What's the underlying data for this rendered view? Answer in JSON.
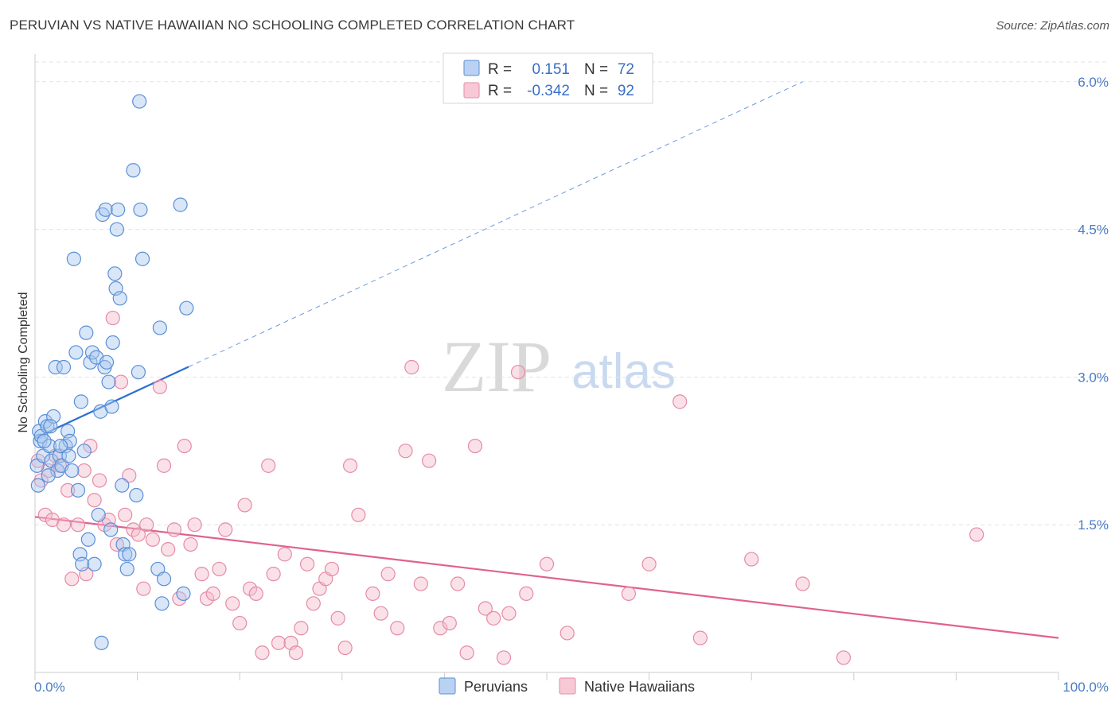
{
  "title": "PERUVIAN VS NATIVE HAWAIIAN NO SCHOOLING COMPLETED CORRELATION CHART",
  "source": "Source: ZipAtlas.com",
  "watermark": {
    "zip": "ZIP",
    "atlas": "atlas"
  },
  "colors": {
    "blue_fill": "#a9c7ef",
    "blue_stroke": "#5b8fd6",
    "blue_line": "#2a6fd0",
    "pink_fill": "#f5bccd",
    "pink_stroke": "#e58aa8",
    "pink_line": "#e0628e",
    "grid": "#e3e3e3",
    "axis_label": "#4a7cc4"
  },
  "legend": {
    "rows": [
      {
        "r_label": "R =",
        "r_value": "0.151",
        "n_label": "N =",
        "n_value": "72"
      },
      {
        "r_label": "R =",
        "r_value": "-0.342",
        "n_label": "N =",
        "n_value": "92"
      }
    ]
  },
  "bottom_legend": [
    "Peruvians",
    "Native Hawaiians"
  ],
  "chart_data": {
    "type": "scatter",
    "title": "PERUVIAN VS NATIVE HAWAIIAN NO SCHOOLING COMPLETED CORRELATION CHART",
    "xlabel": "",
    "ylabel": "No Schooling Completed",
    "xlim": [
      0,
      100
    ],
    "ylim": [
      0,
      6.2
    ],
    "x_tick_labels": [
      "0.0%",
      "100.0%"
    ],
    "y_ticks": [
      {
        "value": 1.5,
        "label": "1.5%"
      },
      {
        "value": 3.0,
        "label": "3.0%"
      },
      {
        "value": 4.5,
        "label": "4.5%"
      },
      {
        "value": 6.0,
        "label": "6.0%"
      }
    ],
    "series": [
      {
        "name": "Peruvians",
        "R": 0.151,
        "N": 72,
        "trend": {
          "x0": 0,
          "y0": 2.38,
          "x1": 75,
          "y1": 6.0,
          "solid_until": 15
        },
        "points": [
          [
            0.2,
            2.1
          ],
          [
            0.3,
            1.9
          ],
          [
            0.4,
            2.45
          ],
          [
            0.5,
            2.35
          ],
          [
            0.6,
            2.4
          ],
          [
            0.8,
            2.2
          ],
          [
            1.0,
            2.55
          ],
          [
            1.2,
            2.5
          ],
          [
            1.4,
            2.3
          ],
          [
            1.6,
            2.15
          ],
          [
            1.8,
            2.6
          ],
          [
            2.0,
            3.1
          ],
          [
            2.2,
            2.05
          ],
          [
            2.4,
            2.2
          ],
          [
            2.6,
            2.1
          ],
          [
            2.8,
            3.1
          ],
          [
            3.0,
            2.3
          ],
          [
            3.2,
            2.45
          ],
          [
            3.4,
            2.35
          ],
          [
            3.6,
            2.05
          ],
          [
            3.8,
            4.2
          ],
          [
            4.0,
            3.25
          ],
          [
            4.2,
            1.85
          ],
          [
            4.4,
            1.2
          ],
          [
            4.5,
            2.75
          ],
          [
            4.6,
            1.1
          ],
          [
            4.8,
            2.25
          ],
          [
            5.0,
            3.45
          ],
          [
            5.2,
            1.35
          ],
          [
            5.4,
            3.15
          ],
          [
            5.6,
            3.25
          ],
          [
            5.8,
            1.1
          ],
          [
            6.0,
            3.2
          ],
          [
            6.2,
            1.6
          ],
          [
            6.4,
            2.65
          ],
          [
            6.6,
            4.65
          ],
          [
            6.8,
            3.1
          ],
          [
            6.9,
            4.7
          ],
          [
            7.0,
            3.15
          ],
          [
            7.2,
            2.95
          ],
          [
            7.4,
            1.45
          ],
          [
            7.5,
            2.7
          ],
          [
            7.6,
            3.35
          ],
          [
            7.8,
            4.05
          ],
          [
            7.9,
            3.9
          ],
          [
            8.0,
            4.5
          ],
          [
            8.1,
            4.7
          ],
          [
            8.3,
            3.8
          ],
          [
            8.5,
            1.9
          ],
          [
            8.6,
            1.3
          ],
          [
            8.8,
            1.2
          ],
          [
            9.0,
            1.05
          ],
          [
            9.2,
            1.2
          ],
          [
            9.6,
            5.1
          ],
          [
            9.9,
            1.8
          ],
          [
            10.1,
            3.05
          ],
          [
            10.3,
            4.7
          ],
          [
            10.5,
            4.2
          ],
          [
            10.2,
            5.8
          ],
          [
            12.0,
            1.05
          ],
          [
            12.2,
            3.5
          ],
          [
            12.4,
            0.7
          ],
          [
            12.6,
            0.95
          ],
          [
            14.2,
            4.75
          ],
          [
            14.5,
            0.8
          ],
          [
            14.8,
            3.7
          ],
          [
            6.5,
            0.3
          ],
          [
            1.5,
            2.5
          ],
          [
            2.5,
            2.3
          ],
          [
            3.3,
            2.2
          ],
          [
            0.9,
            2.35
          ],
          [
            1.3,
            2.0
          ]
        ]
      },
      {
        "name": "Native Hawaiians",
        "R": -0.342,
        "N": 92,
        "trend": {
          "x0": 0,
          "y0": 1.58,
          "x1": 100,
          "y1": 0.35
        },
        "points": [
          [
            0.3,
            2.15
          ],
          [
            0.6,
            1.95
          ],
          [
            1.0,
            1.6
          ],
          [
            1.3,
            2.05
          ],
          [
            1.7,
            1.55
          ],
          [
            2.0,
            2.2
          ],
          [
            2.4,
            2.1
          ],
          [
            2.8,
            1.5
          ],
          [
            3.2,
            1.85
          ],
          [
            3.6,
            0.95
          ],
          [
            4.2,
            1.5
          ],
          [
            4.8,
            2.05
          ],
          [
            5.0,
            1.0
          ],
          [
            5.4,
            2.3
          ],
          [
            5.8,
            1.75
          ],
          [
            6.3,
            1.95
          ],
          [
            6.8,
            1.5
          ],
          [
            7.2,
            1.55
          ],
          [
            7.6,
            3.6
          ],
          [
            8.0,
            1.3
          ],
          [
            8.4,
            2.95
          ],
          [
            8.8,
            1.6
          ],
          [
            9.2,
            2.0
          ],
          [
            9.6,
            1.45
          ],
          [
            10.1,
            1.4
          ],
          [
            10.6,
            0.85
          ],
          [
            10.9,
            1.5
          ],
          [
            11.5,
            1.35
          ],
          [
            12.2,
            2.9
          ],
          [
            12.6,
            2.1
          ],
          [
            13.0,
            1.25
          ],
          [
            13.6,
            1.45
          ],
          [
            14.1,
            0.75
          ],
          [
            14.6,
            2.3
          ],
          [
            15.2,
            1.3
          ],
          [
            15.6,
            1.5
          ],
          [
            16.3,
            1.0
          ],
          [
            16.8,
            0.75
          ],
          [
            17.4,
            0.8
          ],
          [
            18.0,
            1.05
          ],
          [
            18.6,
            1.45
          ],
          [
            19.3,
            0.7
          ],
          [
            20.0,
            0.5
          ],
          [
            20.5,
            1.7
          ],
          [
            21.0,
            0.85
          ],
          [
            21.6,
            0.8
          ],
          [
            22.2,
            0.2
          ],
          [
            22.8,
            2.1
          ],
          [
            23.3,
            1.0
          ],
          [
            23.8,
            0.3
          ],
          [
            24.4,
            1.2
          ],
          [
            25.0,
            0.3
          ],
          [
            25.5,
            0.2
          ],
          [
            26.0,
            0.45
          ],
          [
            26.6,
            1.1
          ],
          [
            27.2,
            0.7
          ],
          [
            27.8,
            0.85
          ],
          [
            28.4,
            0.95
          ],
          [
            29.0,
            1.05
          ],
          [
            29.6,
            0.55
          ],
          [
            30.3,
            0.25
          ],
          [
            30.8,
            2.1
          ],
          [
            31.6,
            1.6
          ],
          [
            33.0,
            0.8
          ],
          [
            33.8,
            0.6
          ],
          [
            34.5,
            1.0
          ],
          [
            35.4,
            0.45
          ],
          [
            36.2,
            2.25
          ],
          [
            36.8,
            3.1
          ],
          [
            37.7,
            0.9
          ],
          [
            38.5,
            2.15
          ],
          [
            39.6,
            0.45
          ],
          [
            40.5,
            0.5
          ],
          [
            41.3,
            0.9
          ],
          [
            42.2,
            0.2
          ],
          [
            43.0,
            2.3
          ],
          [
            44.0,
            0.65
          ],
          [
            44.8,
            0.55
          ],
          [
            45.8,
            0.15
          ],
          [
            46.3,
            0.6
          ],
          [
            47.2,
            3.05
          ],
          [
            48.0,
            0.8
          ],
          [
            50.0,
            1.1
          ],
          [
            52.0,
            0.4
          ],
          [
            58.0,
            0.8
          ],
          [
            60.0,
            1.1
          ],
          [
            63.0,
            2.75
          ],
          [
            65.0,
            0.35
          ],
          [
            70.0,
            1.15
          ],
          [
            75.0,
            0.9
          ],
          [
            79.0,
            0.15
          ],
          [
            92.0,
            1.4
          ]
        ]
      }
    ]
  }
}
